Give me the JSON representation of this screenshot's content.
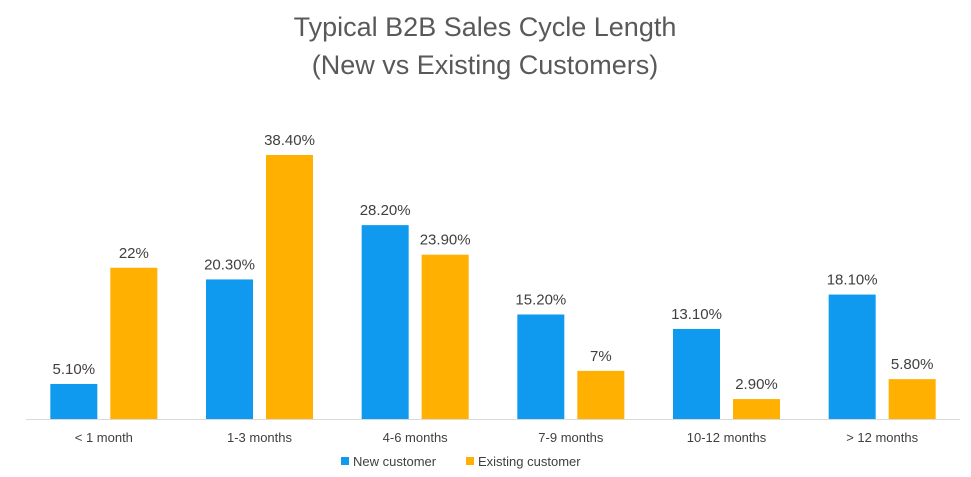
{
  "chart_data": {
    "type": "bar",
    "title": "Typical B2B Sales Cycle Length",
    "subtitle": "(New vs Existing Customers)",
    "xlabel": "",
    "ylabel": "",
    "ylim": [
      0,
      40
    ],
    "grid": false,
    "legend_position": "bottom",
    "categories": [
      "< 1 month",
      "1-3 months",
      "4-6 months",
      "7-9 months",
      "10-12 months",
      "> 12 months"
    ],
    "series": [
      {
        "name": "New customer",
        "color": "#0f9af0",
        "values": [
          5.1,
          20.3,
          28.2,
          15.2,
          13.1,
          18.1
        ],
        "labels": [
          "5.10%",
          "20.30%",
          "28.20%",
          "15.20%",
          "13.10%",
          "18.10%"
        ]
      },
      {
        "name": "Existing customer",
        "color": "#ffb000",
        "values": [
          22,
          38.4,
          23.9,
          7,
          2.9,
          5.8
        ],
        "labels": [
          "22%",
          "38.40%",
          "23.90%",
          "7%",
          "2.90%",
          "5.80%"
        ]
      }
    ]
  }
}
